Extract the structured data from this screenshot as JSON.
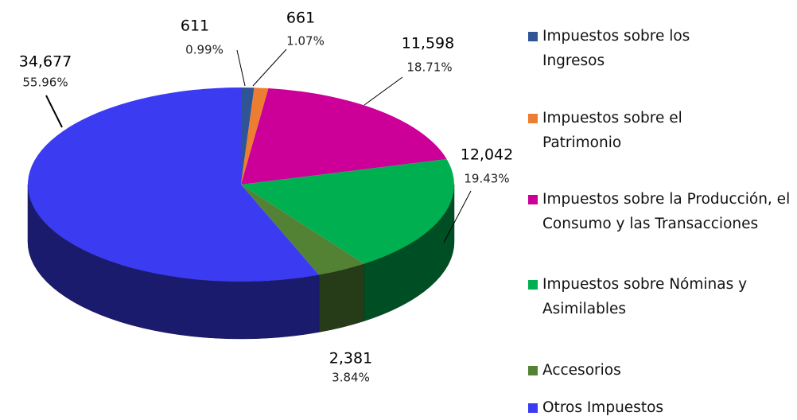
{
  "chart_data": {
    "type": "pie",
    "categories": [
      "Impuestos sobre los Ingresos",
      "Impuestos sobre el Patrimonio",
      "Impuestos sobre la Producción, el Consumo y las Transacciones",
      "Impuestos sobre Nóminas y Asimilables",
      "Accesorios",
      "Otros Impuestos"
    ],
    "values": [
      611,
      661,
      11598,
      12042,
      2381,
      34677
    ],
    "value_labels": [
      "611",
      "661",
      "11,598",
      "12,042",
      "2,381",
      "34,677"
    ],
    "percentage_labels": [
      "0.99%",
      "1.07%",
      "18.71%",
      "19.43%",
      "3.84%",
      "55.96%"
    ],
    "colors": [
      "#2f5597",
      "#ed7d31",
      "#cc0099",
      "#00b050",
      "#548235",
      "#3b3bf2"
    ],
    "legend": "right"
  }
}
